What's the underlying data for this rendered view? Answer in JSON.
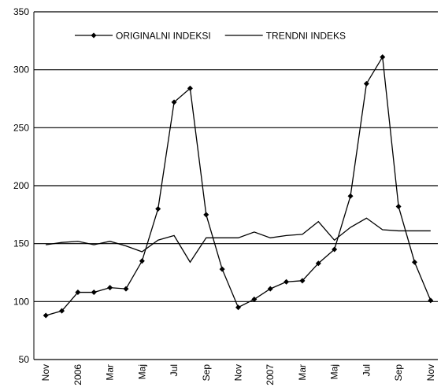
{
  "chart_data": {
    "type": "line",
    "categories": [
      "Nov",
      null,
      "2006",
      null,
      "Mar",
      null,
      "Maj",
      null,
      "Jul",
      null,
      "Sep",
      null,
      "Nov",
      null,
      "2007",
      null,
      "Mar",
      null,
      "Maj",
      null,
      "Jul",
      null,
      "Sep",
      null,
      "Nov"
    ],
    "series": [
      {
        "name": "ORIGINALNI INDEKSI",
        "color": "#000000",
        "marker": "diamond",
        "values": [
          88,
          92,
          108,
          108,
          112,
          111,
          135,
          180,
          272,
          284,
          175,
          128,
          95,
          102,
          111,
          117,
          118,
          133,
          145,
          191,
          288,
          311,
          182,
          134,
          101
        ]
      },
      {
        "name": "TRENDNI INDEKS",
        "color": "#000000",
        "values": [
          149,
          151,
          152,
          149,
          152,
          148,
          143,
          153,
          157,
          134,
          155,
          155,
          155,
          160,
          155,
          157,
          158,
          169,
          153,
          164,
          172,
          162,
          161,
          161,
          161
        ]
      }
    ],
    "ylim": [
      50,
      350
    ],
    "yticks": [
      50,
      100,
      150,
      200,
      250,
      300,
      350
    ],
    "grid": true,
    "legend": "top"
  }
}
